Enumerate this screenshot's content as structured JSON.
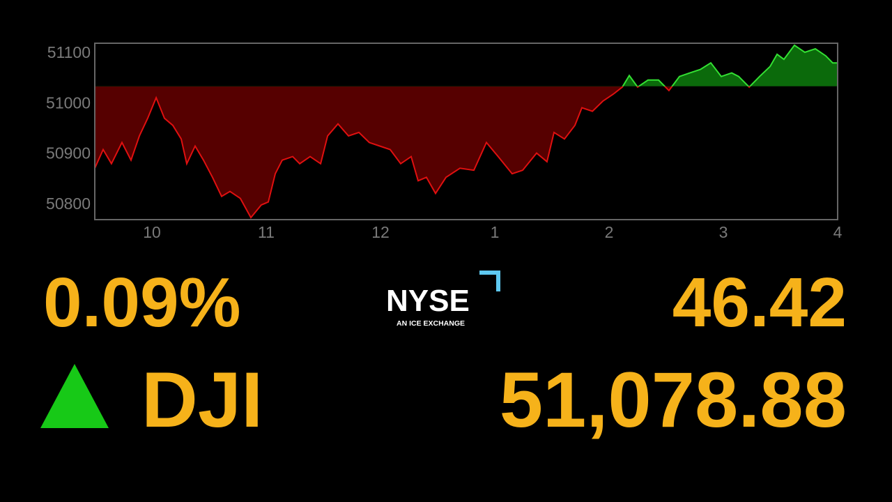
{
  "chart_data": {
    "type": "area",
    "xlim": [
      9.5,
      16
    ],
    "ylim": [
      50768,
      51118
    ],
    "xticks": [
      10,
      11,
      12,
      {
        "value": 13,
        "label": "1"
      },
      {
        "value": 14,
        "label": "2"
      },
      {
        "value": 15,
        "label": "3"
      },
      {
        "value": 16,
        "label": "4"
      }
    ],
    "yticks": [
      50800,
      50900,
      51000,
      51100
    ],
    "baseline": 51032.46,
    "up_color": "#33e033",
    "up_fill": "#0b6a0b",
    "down_color": "#e01010",
    "down_fill": "#560000",
    "x": [
      9.5,
      9.573,
      9.646,
      9.738,
      9.817,
      9.89,
      9.963,
      10.037,
      10.11,
      10.183,
      10.256,
      10.305,
      10.378,
      10.451,
      10.53,
      10.61,
      10.683,
      10.774,
      10.866,
      10.957,
      11.018,
      11.079,
      11.14,
      11.232,
      11.293,
      11.384,
      11.476,
      11.537,
      11.628,
      11.72,
      11.811,
      11.902,
      11.994,
      12.085,
      12.177,
      12.268,
      12.329,
      12.402,
      12.482,
      12.573,
      12.695,
      12.817,
      12.927,
      13.03,
      13.152,
      13.244,
      13.366,
      13.457,
      13.518,
      13.61,
      13.701,
      13.762,
      13.854,
      13.945,
      14.037,
      14.116,
      14.177,
      14.25,
      14.341,
      14.433,
      14.524,
      14.616,
      14.707,
      14.799,
      14.89,
      14.982,
      15.073,
      15.134,
      15.226,
      15.317,
      15.409,
      15.47,
      15.53,
      15.622,
      15.713,
      15.805,
      15.896,
      15.957,
      16
    ],
    "values": [
      50870,
      50907,
      50879,
      50921,
      50886,
      50934,
      50969,
      51010,
      50969,
      50955,
      50928,
      50879,
      50914,
      50886,
      50852,
      50814,
      50824,
      50810,
      50772,
      50797,
      50803,
      50859,
      50886,
      50893,
      50879,
      50893,
      50879,
      50934,
      50958,
      50934,
      50941,
      50921,
      50914,
      50907,
      50879,
      50893,
      50845,
      50852,
      50820,
      50852,
      50870,
      50866,
      50921,
      50893,
      50859,
      50866,
      50900,
      50883,
      50941,
      50928,
      50955,
      50990,
      50983,
      51003,
      51017,
      51031,
      51054,
      51031,
      51045,
      51045,
      51024,
      51052,
      51059,
      51066,
      51079,
      51052,
      51059,
      51052,
      51031,
      51052,
      51072,
      51096,
      51086,
      51114,
      51100,
      51107,
      51093,
      51079,
      51079
    ]
  },
  "ticker": {
    "change_percent": "0.09%",
    "change": "46.42",
    "symbol": "DJI",
    "price": "51,078.88",
    "logo": "NYSE",
    "logo_sub": "AN ICE EXCHANGE"
  }
}
